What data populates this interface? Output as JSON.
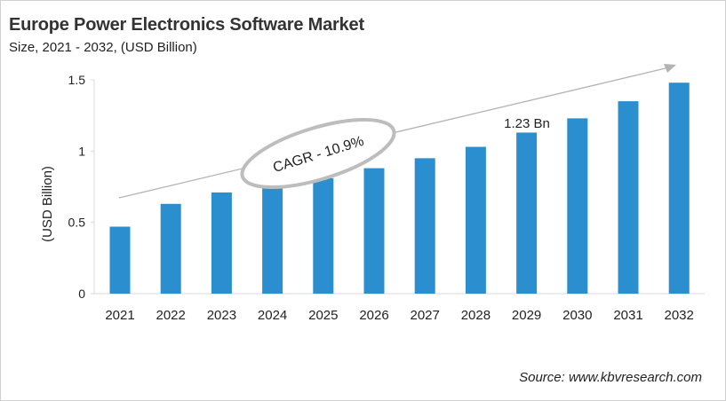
{
  "chart_data": {
    "type": "bar",
    "title": "Europe Power Electronics Software Market",
    "subtitle": "Size, 2021 - 2032, (USD Billion)",
    "xlabel": "",
    "ylabel": "(USD Billion)",
    "categories": [
      "2021",
      "2022",
      "2023",
      "2024",
      "2025",
      "2026",
      "2027",
      "2028",
      "2029",
      "2030",
      "2031",
      "2032"
    ],
    "values": [
      0.47,
      0.63,
      0.71,
      0.75,
      0.81,
      0.88,
      0.95,
      1.03,
      1.13,
      1.23,
      1.35,
      1.48
    ],
    "ylim": [
      0,
      1.5
    ],
    "yticks": [
      "0",
      "0.5",
      "1",
      "1.5"
    ],
    "ytick_values": [
      0,
      0.5,
      1,
      1.5
    ],
    "grid": false,
    "bar_color": "#2b8fcf",
    "annotations": {
      "cagr": "CAGR - 10.9%",
      "value_label": "1.23 Bn"
    },
    "source": "Source: www.kbvresearch.com"
  }
}
